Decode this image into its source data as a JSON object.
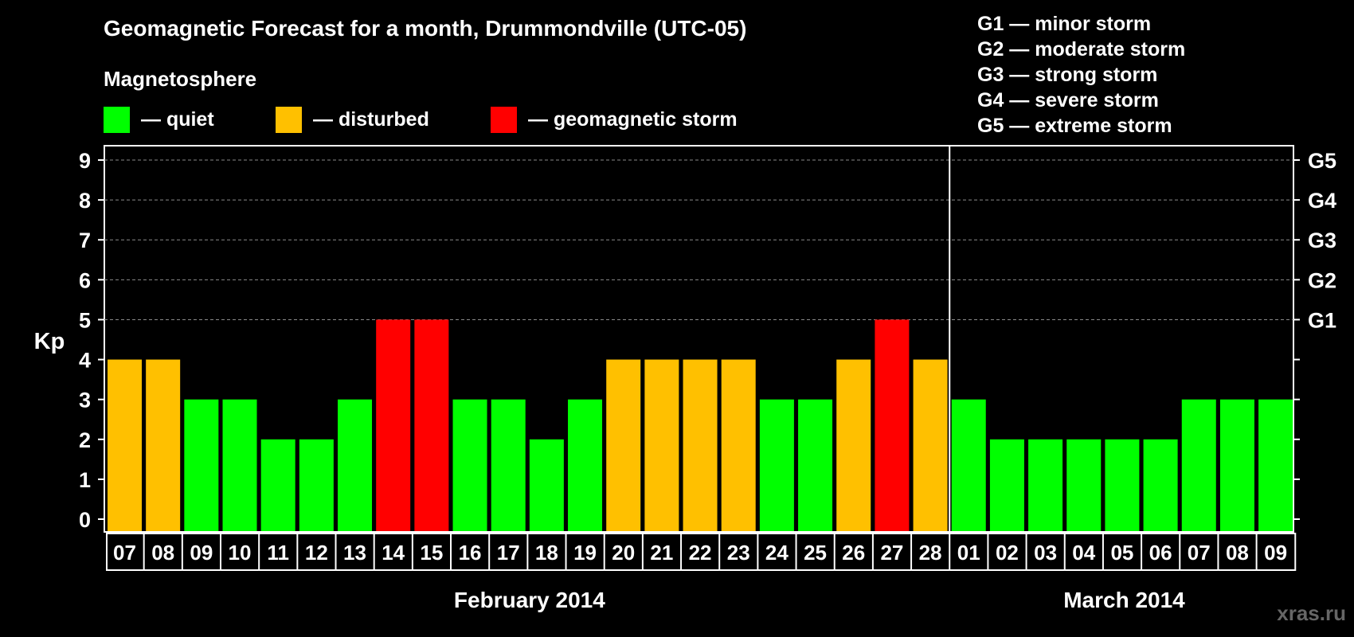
{
  "chart_data": {
    "type": "bar",
    "title": "Geomagnetic Forecast for a month, Drummondville (UTC-05)",
    "subtitle": "Magnetosphere",
    "ylabel": "Kp",
    "ylim": [
      0,
      9
    ],
    "yticks": [
      "0",
      "1",
      "2",
      "3",
      "4",
      "5",
      "6",
      "7",
      "8",
      "9"
    ],
    "right_ticks": [
      {
        "kp": 5,
        "label": "G1"
      },
      {
        "kp": 6,
        "label": "G2"
      },
      {
        "kp": 7,
        "label": "G3"
      },
      {
        "kp": 8,
        "label": "G4"
      },
      {
        "kp": 9,
        "label": "G5"
      }
    ],
    "grid": true,
    "legend": [
      {
        "label": "— quiet",
        "color": "#00ff00"
      },
      {
        "label": "— disturbed",
        "color": "#ffc000"
      },
      {
        "label": "— geomagnetic storm",
        "color": "#ff0000"
      }
    ],
    "storm_legend": [
      "G1 — minor storm",
      "G2 — moderate storm",
      "G3 — strong storm",
      "G4 — severe storm",
      "G5 — extreme storm"
    ],
    "categories": [
      "07",
      "08",
      "09",
      "10",
      "11",
      "12",
      "13",
      "14",
      "15",
      "16",
      "17",
      "18",
      "19",
      "20",
      "21",
      "22",
      "23",
      "24",
      "25",
      "26",
      "27",
      "28",
      "01",
      "02",
      "03",
      "04",
      "05",
      "06",
      "07",
      "08",
      "09"
    ],
    "values": [
      4,
      4,
      3,
      3,
      2,
      2,
      3,
      5,
      5,
      3,
      3,
      2,
      3,
      4,
      4,
      4,
      4,
      3,
      3,
      4,
      5,
      4,
      3,
      2,
      2,
      2,
      2,
      2,
      3,
      3,
      3
    ],
    "months": [
      {
        "label": "February 2014",
        "days": 22
      },
      {
        "label": "March 2014",
        "days": 9
      }
    ],
    "colors": {
      "quiet": "#00ff00",
      "disturbed": "#ffc000",
      "storm": "#ff0000"
    }
  },
  "watermark": "xras.ru"
}
